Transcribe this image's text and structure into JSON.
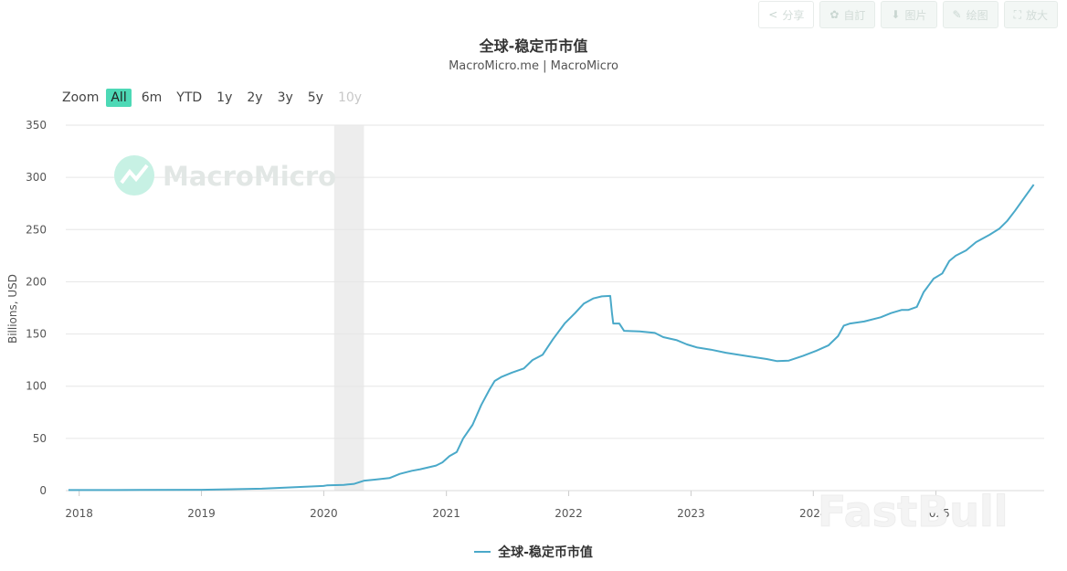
{
  "toolbar": {
    "buttons": [
      {
        "label": "分享",
        "icon": "share-icon"
      },
      {
        "label": "自訂",
        "icon": "gear-icon"
      },
      {
        "label": "图片",
        "icon": "download-icon"
      },
      {
        "label": "绘图",
        "icon": "pencil-icon"
      },
      {
        "label": "放大",
        "icon": "expand-icon"
      }
    ]
  },
  "zoom": {
    "label": "Zoom",
    "options": [
      "All",
      "6m",
      "YTD",
      "1y",
      "2y",
      "3y",
      "5y",
      "10y"
    ],
    "active": "All",
    "disabled": [
      "10y"
    ]
  },
  "watermarks": {
    "macromicro": "MacroMicro",
    "fastbull": "FastBull"
  },
  "colors": {
    "series": "#4aa9c9",
    "accent": "#4dd9b6",
    "shade": "#ededed"
  },
  "chart_data": {
    "type": "line",
    "title": "全球-稳定币市值",
    "subtitle": "MacroMicro.me | MacroMicro",
    "ylabel": "Billions, USD",
    "xlabel": "",
    "ylim": [
      0,
      350
    ],
    "yticks": [
      0,
      50,
      100,
      150,
      200,
      250,
      300,
      350
    ],
    "xlim": [
      "2017-11-22",
      "2025-11-20"
    ],
    "xticks": [
      "2018",
      "2019",
      "2020",
      "2021",
      "2022",
      "2023",
      "2024",
      "2025"
    ],
    "grid": true,
    "legend_position": "bottom-center",
    "shaded_ranges": [
      [
        "2020-02-01",
        "2020-04-30"
      ]
    ],
    "series": [
      {
        "name": "全球-稳定币市值",
        "points": [
          [
            "2017-11-30",
            0.5
          ],
          [
            "2018-06-30",
            0.6
          ],
          [
            "2019-01-01",
            0.8
          ],
          [
            "2019-06-30",
            1.8
          ],
          [
            "2019-12-31",
            4.5
          ],
          [
            "2020-01-10",
            5.0
          ],
          [
            "2020-03-01",
            5.5
          ],
          [
            "2020-04-01",
            6.5
          ],
          [
            "2020-05-01",
            9.5
          ],
          [
            "2020-06-01",
            10.5
          ],
          [
            "2020-07-15",
            12.0
          ],
          [
            "2020-08-15",
            16.0
          ],
          [
            "2020-09-20",
            19.0
          ],
          [
            "2020-10-15",
            20.5
          ],
          [
            "2020-12-01",
            24.0
          ],
          [
            "2020-12-20",
            27.0
          ],
          [
            "2021-01-10",
            33.0
          ],
          [
            "2021-02-01",
            37.0
          ],
          [
            "2021-02-20",
            50.0
          ],
          [
            "2021-03-20",
            63.0
          ],
          [
            "2021-04-15",
            82.0
          ],
          [
            "2021-05-10",
            97.0
          ],
          [
            "2021-05-25",
            105.0
          ],
          [
            "2021-06-15",
            109.0
          ],
          [
            "2021-07-15",
            113.0
          ],
          [
            "2021-08-20",
            117.0
          ],
          [
            "2021-09-15",
            125.0
          ],
          [
            "2021-10-15",
            130.0
          ],
          [
            "2021-11-15",
            145.0
          ],
          [
            "2021-12-20",
            160.0
          ],
          [
            "2022-01-20",
            170.0
          ],
          [
            "2022-02-15",
            179.0
          ],
          [
            "2022-03-15",
            184.0
          ],
          [
            "2022-04-10",
            186.0
          ],
          [
            "2022-05-05",
            186.5
          ],
          [
            "2022-05-10",
            170.0
          ],
          [
            "2022-05-14",
            160.0
          ],
          [
            "2022-06-01",
            160.0
          ],
          [
            "2022-06-15",
            153.0
          ],
          [
            "2022-08-01",
            152.5
          ],
          [
            "2022-09-15",
            151.0
          ],
          [
            "2022-10-10",
            147.0
          ],
          [
            "2022-11-20",
            144.0
          ],
          [
            "2022-12-20",
            140.0
          ],
          [
            "2023-01-20",
            137.0
          ],
          [
            "2023-03-01",
            135.0
          ],
          [
            "2023-04-15",
            132.0
          ],
          [
            "2023-06-15",
            129.0
          ],
          [
            "2023-08-15",
            126.0
          ],
          [
            "2023-09-15",
            124.0
          ],
          [
            "2023-10-20",
            124.5
          ],
          [
            "2023-12-01",
            129.0
          ],
          [
            "2024-01-10",
            134.0
          ],
          [
            "2024-02-15",
            139.0
          ],
          [
            "2024-03-15",
            148.0
          ],
          [
            "2024-04-01",
            158.0
          ],
          [
            "2024-04-20",
            160.0
          ],
          [
            "2024-06-01",
            162.0
          ],
          [
            "2024-07-20",
            166.0
          ],
          [
            "2024-08-20",
            170.0
          ],
          [
            "2024-09-20",
            173.0
          ],
          [
            "2024-10-10",
            173.0
          ],
          [
            "2024-11-05",
            176.0
          ],
          [
            "2024-11-25",
            190.0
          ],
          [
            "2024-12-25",
            203.0
          ],
          [
            "2025-01-20",
            208.0
          ],
          [
            "2025-02-10",
            220.0
          ],
          [
            "2025-03-01",
            225.0
          ],
          [
            "2025-04-01",
            230.0
          ],
          [
            "2025-05-01",
            238.0
          ],
          [
            "2025-06-10",
            245.0
          ],
          [
            "2025-07-10",
            251.0
          ],
          [
            "2025-08-01",
            258.0
          ],
          [
            "2025-08-25",
            268.0
          ],
          [
            "2025-09-25",
            282.0
          ],
          [
            "2025-10-20",
            293.0
          ]
        ]
      }
    ]
  }
}
